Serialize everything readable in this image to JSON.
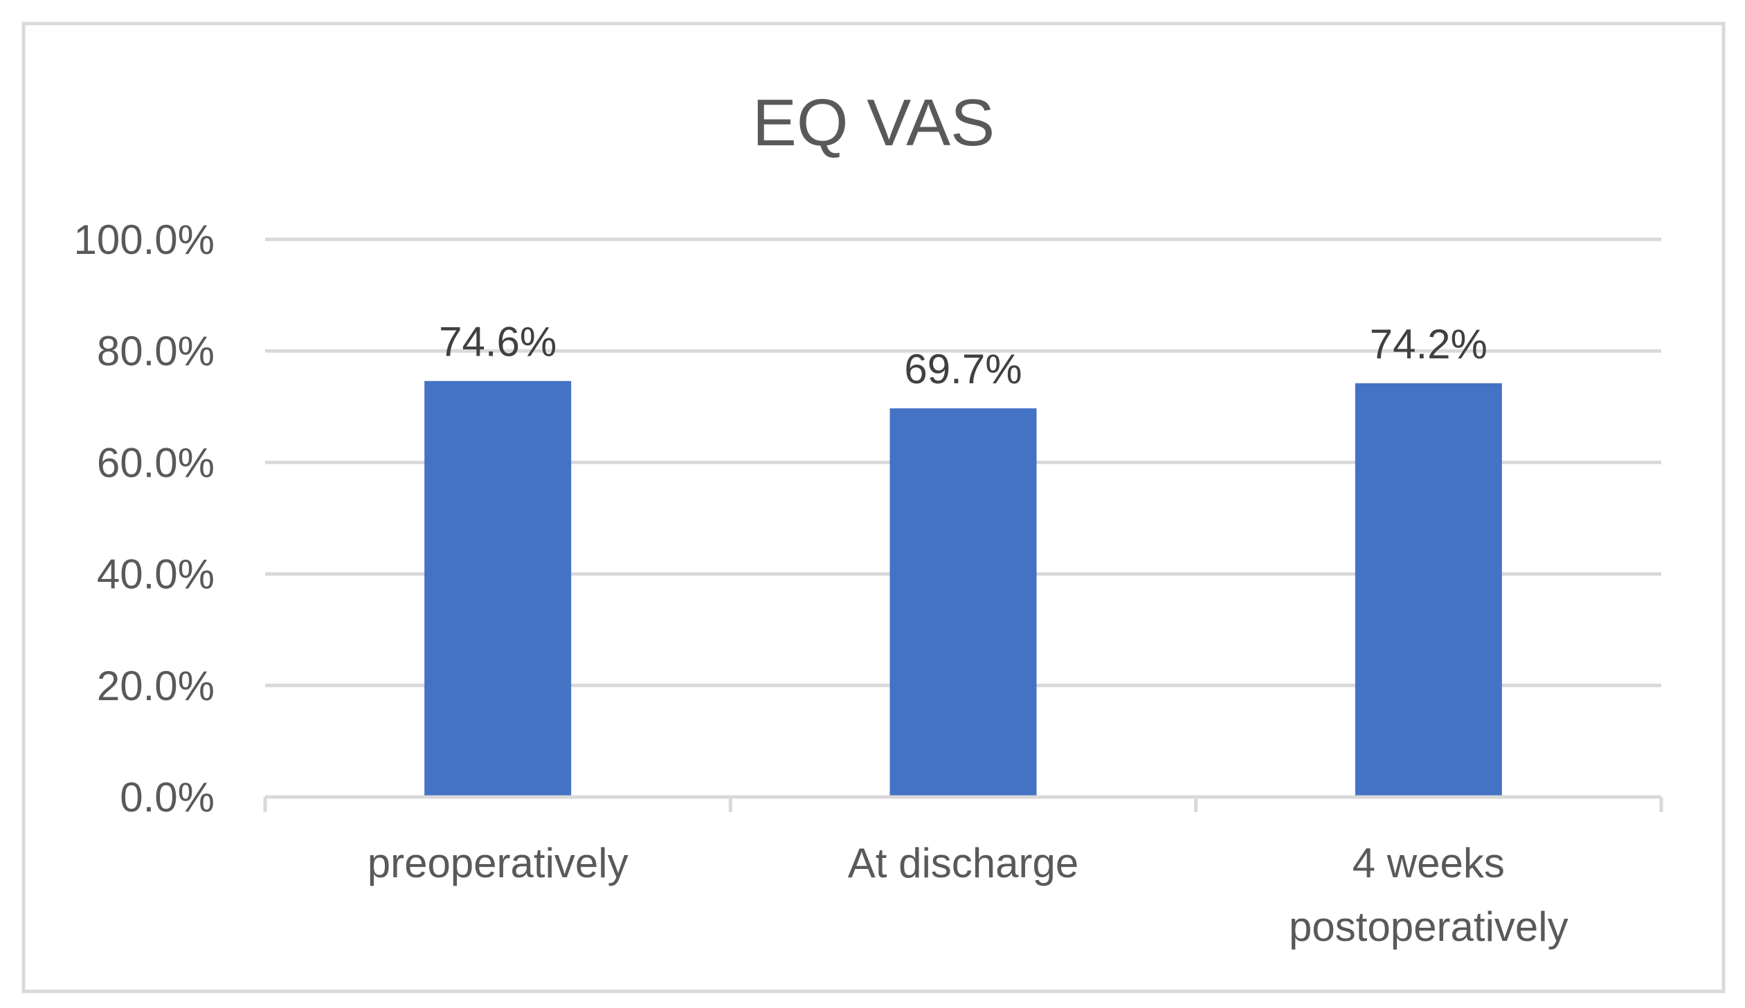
{
  "chart_data": {
    "type": "bar",
    "title": "EQ VAS",
    "categories": [
      [
        "preoperatively"
      ],
      [
        "At discharge"
      ],
      [
        "4 weeks",
        "postoperatively"
      ]
    ],
    "values": [
      74.6,
      69.7,
      74.2
    ],
    "data_labels": [
      "74.6%",
      "69.7%",
      "74.2%"
    ],
    "y_ticks": [
      0,
      20,
      40,
      60,
      80,
      100
    ],
    "y_tick_labels": [
      "0.0%",
      "20.0%",
      "40.0%",
      "60.0%",
      "80.0%",
      "100.0%"
    ],
    "ylim": [
      0,
      100
    ],
    "xlabel": "",
    "ylabel": "",
    "grid": true,
    "legend": "none",
    "bar_color": "#4472C4",
    "grid_color": "#D9D9D9"
  }
}
